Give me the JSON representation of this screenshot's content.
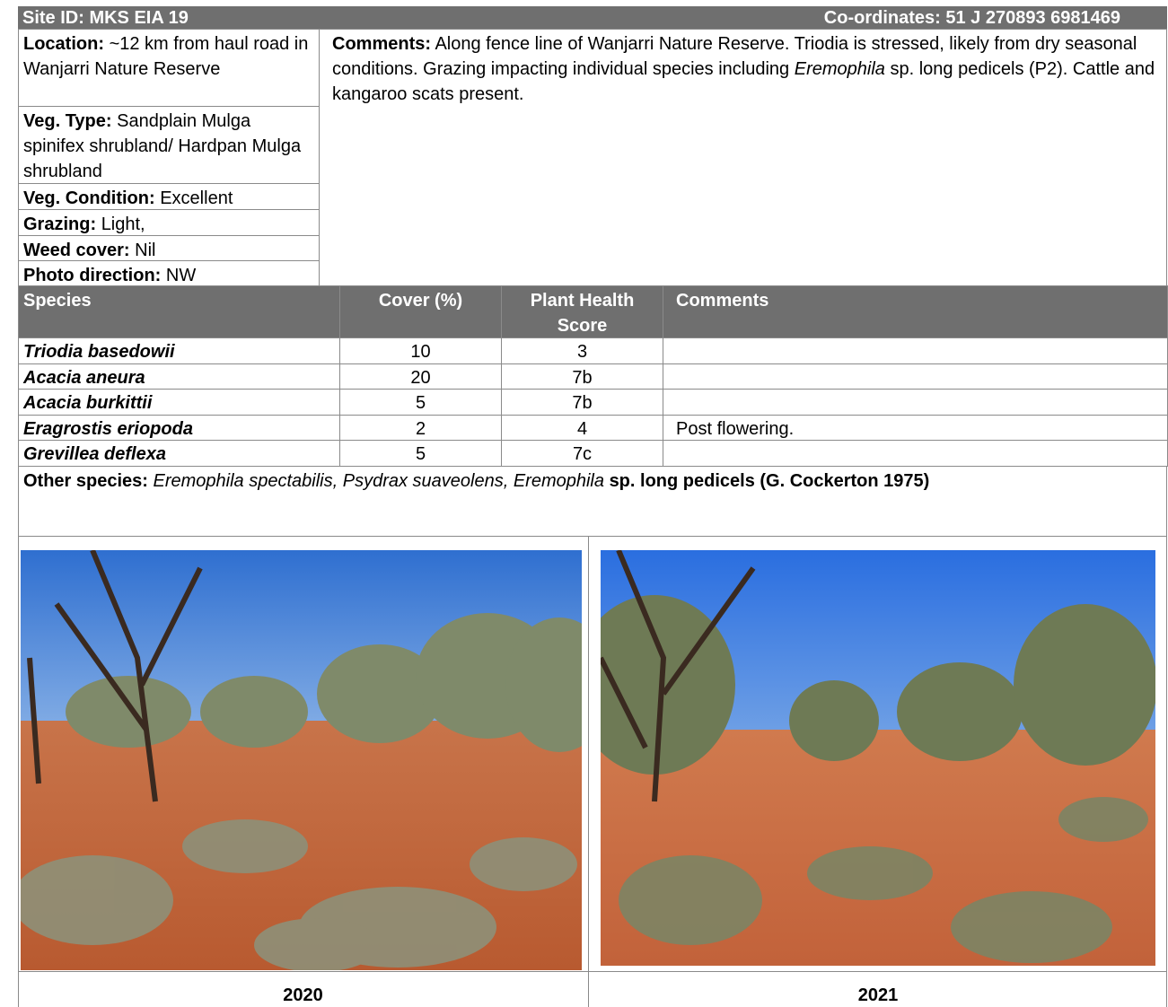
{
  "header": {
    "site": "Site ID: MKS EIA 19",
    "coordinates": "Co-ordinates: 51 J 270893 6981469"
  },
  "fields": [
    {
      "label": "Location:",
      "value": "~12 km from haul road in Wanjarri Nature Reserve"
    },
    {
      "label": "Veg. Type:",
      "value": "Sandplain Mulga spinifex shrubland/ Hardpan Mulga shrubland"
    },
    {
      "label": "Veg. Condition:",
      "value": "Excellent"
    },
    {
      "label": "Grazing:",
      "value": "Light,"
    },
    {
      "label": "Weed cover:",
      "value": "Nil"
    },
    {
      "label": "Photo direction:",
      "value": "NW"
    }
  ],
  "comments": {
    "label": "Comments:",
    "text": "Along fence line of Wanjarri Nature Reserve. Triodia is stressed, likely from dry seasonal conditions. Grazing impacting individual species including",
    "italic": "Eremophila",
    "text_after": "sp. long pedicels (P2). Cattle and kangaroo scats present."
  },
  "species_table": {
    "columns": [
      "Species",
      "Cover (%)",
      "Plant Health Score",
      "Comments"
    ],
    "rows": [
      {
        "species": "Triodia basedowii",
        "cover": 10,
        "score": 3
      },
      {
        "species": "Acacia aneura",
        "cover": 20,
        "score": "7b"
      },
      {
        "species": "Acacia burkittii",
        "cover": 5,
        "score": "7b"
      },
      {
        "species": "Eragrostis eriopoda",
        "cover": 2,
        "score": 4,
        "comment": "Post flowering."
      },
      {
        "species": "Grevillea deflexa",
        "cover": 5,
        "score": "7c"
      }
    ]
  },
  "other_species": {
    "label": "Other species:",
    "italic": "Eremophila spectabilis, Psydrax suaveolens, Eremophila",
    "bold": "sp. long pedicels (G. Cockerton 1975)"
  },
  "photos": [
    {
      "caption": "2020"
    },
    {
      "caption": "2021"
    }
  ]
}
